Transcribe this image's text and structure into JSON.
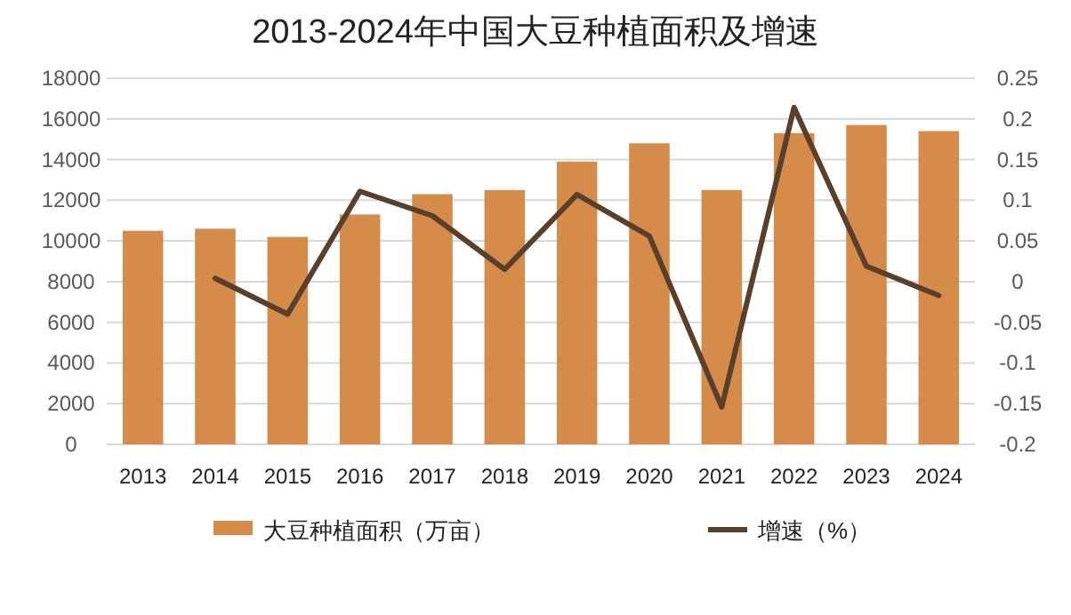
{
  "chart_data": {
    "type": "bar",
    "title": "2013-2024年中国大豆种植面积及增速",
    "categories": [
      "2013",
      "2014",
      "2015",
      "2016",
      "2017",
      "2018",
      "2019",
      "2020",
      "2021",
      "2022",
      "2023",
      "2024"
    ],
    "series": [
      {
        "name": "大豆种植面积（万亩）",
        "color": "#d58b4a",
        "values": [
          10500,
          10600,
          10200,
          11300,
          12300,
          12500,
          13900,
          14800,
          12500,
          15300,
          15700,
          15400
        ]
      },
      {
        "name": "增速（%）",
        "type": "line",
        "axis": "y2",
        "color": "#5a3f2b",
        "values": [
          null,
          0.004,
          -0.04,
          0.111,
          0.081,
          0.015,
          0.107,
          0.056,
          -0.154,
          0.214,
          0.019,
          -0.017
        ]
      }
    ],
    "ylim": [
      0,
      18000
    ],
    "yticks": [
      0,
      2000,
      4000,
      6000,
      8000,
      10000,
      12000,
      14000,
      16000,
      18000
    ],
    "y2lim": [
      -0.2,
      0.25
    ],
    "y2ticks": [
      -0.2,
      -0.15,
      -0.1,
      -0.05,
      0,
      0.05,
      0.1,
      0.15,
      0.2,
      0.25
    ],
    "grid": "y",
    "legend": "bottom"
  }
}
